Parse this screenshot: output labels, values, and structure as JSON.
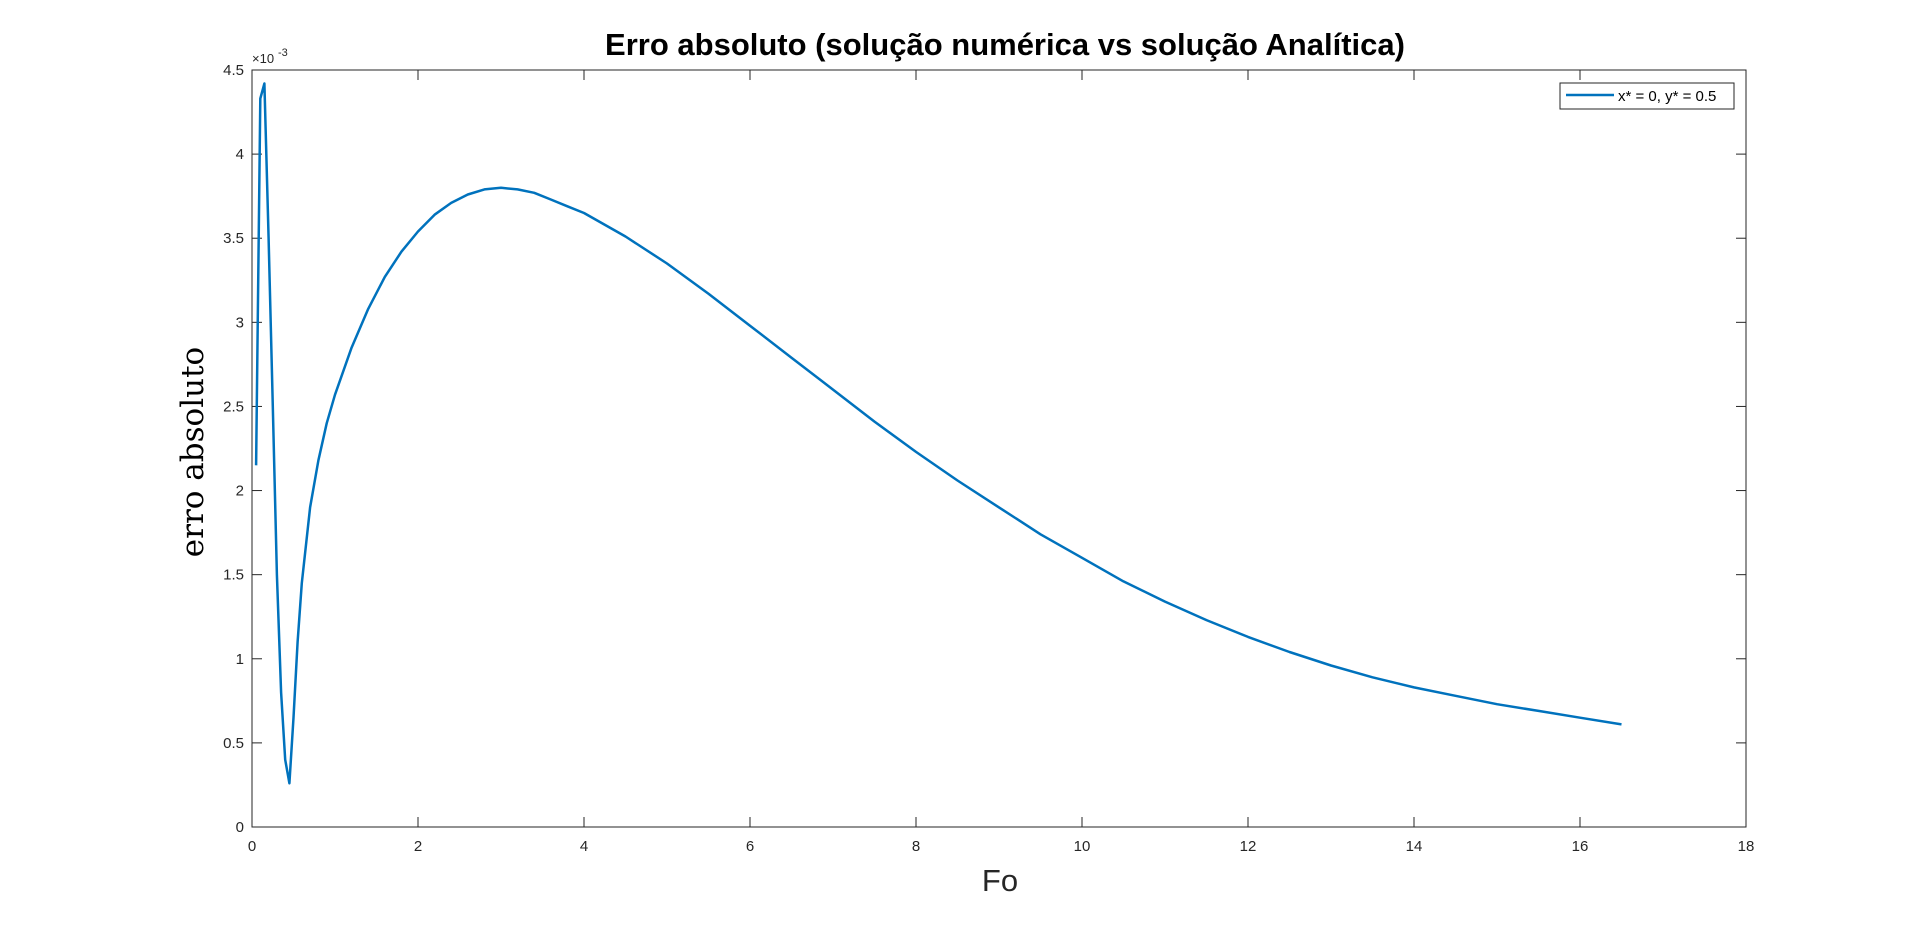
{
  "chart_data": {
    "type": "line",
    "title": "Erro absoluto (solução numérica vs solução Analítica)",
    "xlabel": "Fo",
    "ylabel": "erro absoluto",
    "xlim": [
      0,
      18
    ],
    "ylim": [
      0,
      0.0045
    ],
    "y_exponent_label": "×10",
    "y_exponent_power": "-3",
    "xticks": [
      0,
      2,
      4,
      6,
      8,
      10,
      12,
      14,
      16,
      18
    ],
    "xtick_labels": [
      "0",
      "2",
      "4",
      "6",
      "8",
      "10",
      "12",
      "14",
      "16",
      "18"
    ],
    "yticks": [
      0,
      0.0005,
      0.001,
      0.0015,
      0.002,
      0.0025,
      0.003,
      0.0035,
      0.004,
      0.0045
    ],
    "ytick_labels": [
      "0",
      "0.5",
      "1",
      "1.5",
      "2",
      "2.5",
      "3",
      "3.5",
      "4",
      "4.5"
    ],
    "grid": false,
    "legend_position": "top-right",
    "series": [
      {
        "name": "x* = 0, y* = 0.5",
        "color": "#0072BD",
        "x": [
          0.05,
          0.1,
          0.15,
          0.2,
          0.25,
          0.3,
          0.35,
          0.4,
          0.45,
          0.5,
          0.55,
          0.6,
          0.7,
          0.8,
          0.9,
          1.0,
          1.2,
          1.4,
          1.6,
          1.8,
          2.0,
          2.2,
          2.4,
          2.6,
          2.8,
          3.0,
          3.2,
          3.4,
          3.6,
          3.8,
          4.0,
          4.5,
          5.0,
          5.5,
          6.0,
          6.5,
          7.0,
          7.5,
          8.0,
          8.5,
          9.0,
          9.5,
          10.0,
          10.5,
          11.0,
          11.5,
          12.0,
          12.5,
          13.0,
          13.5,
          14.0,
          14.5,
          15.0,
          15.5,
          16.0,
          16.5
        ],
        "y": [
          0.00215,
          0.00433,
          0.00442,
          0.0035,
          0.0025,
          0.0015,
          0.0008,
          0.0004,
          0.00026,
          0.00065,
          0.0011,
          0.00145,
          0.0019,
          0.00218,
          0.0024,
          0.00257,
          0.00285,
          0.00308,
          0.00327,
          0.00342,
          0.00354,
          0.00364,
          0.00371,
          0.00376,
          0.00379,
          0.0038,
          0.00379,
          0.00377,
          0.00373,
          0.00369,
          0.00365,
          0.00351,
          0.00335,
          0.00317,
          0.00298,
          0.00279,
          0.0026,
          0.00241,
          0.00223,
          0.00206,
          0.0019,
          0.00174,
          0.0016,
          0.00146,
          0.00134,
          0.00123,
          0.00113,
          0.00104,
          0.00096,
          0.00089,
          0.00083,
          0.00078,
          0.00073,
          0.00069,
          0.00065,
          0.00061
        ]
      }
    ]
  }
}
